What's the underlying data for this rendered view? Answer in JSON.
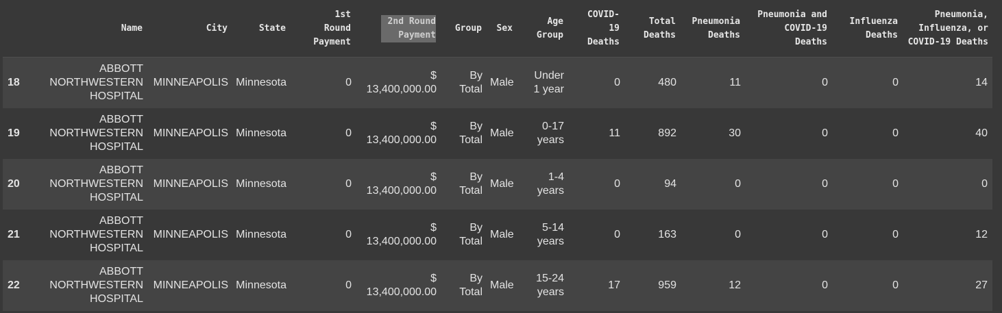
{
  "table": {
    "columns": [
      "",
      "Name",
      "City",
      "State",
      "1st Round Payment",
      "2nd Round Payment",
      "Group",
      "Sex",
      "Age Group",
      "COVID-19 Deaths",
      "Total Deaths",
      "Pneumonia Deaths",
      "Pneumonia and COVID-19 Deaths",
      "Influenza Deaths",
      "Pneumonia, Influenza, or COVID-19 Deaths"
    ],
    "rows": [
      [
        "18",
        "ABBOTT NORTHWESTERN HOSPITAL",
        "MINNEAPOLIS",
        "Minnesota",
        "0",
        "$ 13,400,000.00",
        "By Total",
        "Male",
        "Under 1 year",
        "0",
        "480",
        "11",
        "0",
        "0",
        "14"
      ],
      [
        "19",
        "ABBOTT NORTHWESTERN HOSPITAL",
        "MINNEAPOLIS",
        "Minnesota",
        "0",
        "$ 13,400,000.00",
        "By Total",
        "Male",
        "0-17 years",
        "11",
        "892",
        "30",
        "0",
        "0",
        "40"
      ],
      [
        "20",
        "ABBOTT NORTHWESTERN HOSPITAL",
        "MINNEAPOLIS",
        "Minnesota",
        "0",
        "$ 13,400,000.00",
        "By Total",
        "Male",
        "1-4 years",
        "0",
        "94",
        "0",
        "0",
        "0",
        "0"
      ],
      [
        "21",
        "ABBOTT NORTHWESTERN HOSPITAL",
        "MINNEAPOLIS",
        "Minnesota",
        "0",
        "$ 13,400,000.00",
        "By Total",
        "Male",
        "5-14 years",
        "0",
        "163",
        "0",
        "0",
        "0",
        "12"
      ],
      [
        "22",
        "ABBOTT NORTHWESTERN HOSPITAL",
        "MINNEAPOLIS",
        "Minnesota",
        "0",
        "$ 13,400,000.00",
        "By Total",
        "Male",
        "15-24 years",
        "17",
        "959",
        "12",
        "0",
        "0",
        "27"
      ]
    ]
  },
  "theme": {
    "background": "#383838",
    "row_stripe": "#444444",
    "text": "#e3e3e3",
    "header_highlight": "#6a6a6a"
  }
}
